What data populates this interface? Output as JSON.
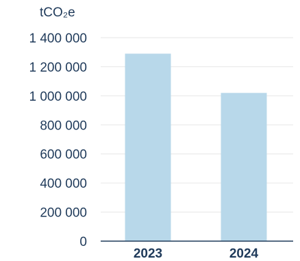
{
  "chart_data": {
    "type": "bar",
    "unit_label": "tCO₂e",
    "categories": [
      "2023",
      "2024"
    ],
    "values": [
      1290000,
      1020000
    ],
    "ylim": [
      0,
      1400000
    ],
    "yticks": [
      0,
      200000,
      400000,
      600000,
      800000,
      1000000,
      1200000,
      1400000
    ],
    "ytick_labels": [
      "0",
      "200 000",
      "400 000",
      "600 000",
      "800 000",
      "1 000 000",
      "1 200 000",
      "1 400 000"
    ],
    "grid": true,
    "colors": {
      "bar": "#b8d8ea",
      "text": "#1f3a5a",
      "grid": "#e6e6e6",
      "axis": "#1f3a5a"
    }
  }
}
